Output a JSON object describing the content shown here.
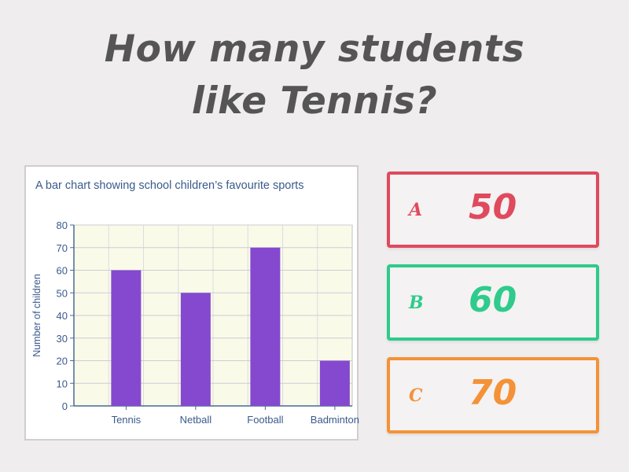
{
  "question": {
    "line1": "How many students",
    "line2": "like Tennis?"
  },
  "answers": [
    {
      "letter": "A",
      "value": "50",
      "color": "#e04a5e"
    },
    {
      "letter": "B",
      "value": "60",
      "color": "#2ecb8c"
    },
    {
      "letter": "C",
      "value": "70",
      "color": "#f49237"
    }
  ],
  "chart_data": {
    "type": "bar",
    "title": "A bar chart showing school children’s favourite sports",
    "ylabel": "Number of children",
    "xlabel": "",
    "categories": [
      "Tennis",
      "Netball",
      "Football",
      "Badminton"
    ],
    "values": [
      60,
      50,
      70,
      20
    ],
    "ylim": [
      0,
      80
    ],
    "yticks": [
      0,
      10,
      20,
      30,
      40,
      50,
      60,
      70,
      80
    ],
    "bar_color": "#8549cf",
    "plot_background": "#fafae8",
    "grid": true
  }
}
